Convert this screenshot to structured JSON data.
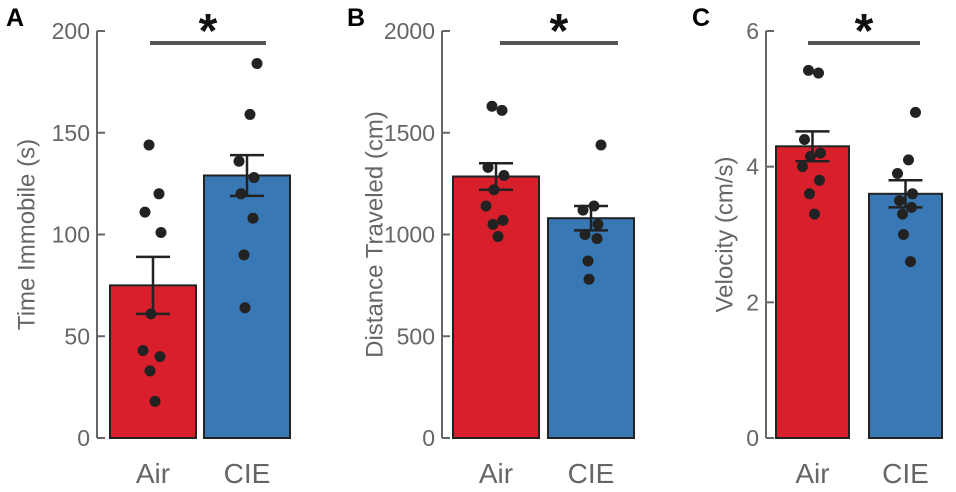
{
  "colors": {
    "air": "#DA1F2C",
    "cie": "#3878B4",
    "axis": "#666666",
    "dot": "#222222",
    "sig": "#555555"
  },
  "chart_data": [
    {
      "panel_label": "A",
      "type": "bar",
      "ylabel": "Time Immobile (s)",
      "ylim": [
        0,
        200
      ],
      "yticks": [
        0,
        50,
        100,
        150,
        200
      ],
      "categories": [
        "Air",
        "CIE"
      ],
      "values": [
        75,
        129
      ],
      "sem": [
        14,
        10
      ],
      "points": [
        [
          144,
          120,
          111,
          101,
          61,
          43,
          40,
          33,
          18
        ],
        [
          184,
          159,
          136,
          128,
          120,
          108,
          90,
          64
        ]
      ],
      "significance": "*"
    },
    {
      "panel_label": "B",
      "type": "bar",
      "ylabel": "Distance Traveled (cm)",
      "ylim": [
        0,
        2000
      ],
      "yticks": [
        0,
        500,
        1000,
        1500,
        2000
      ],
      "categories": [
        "Air",
        "CIE"
      ],
      "values": [
        1285,
        1080
      ],
      "sem": [
        65,
        60
      ],
      "points": [
        [
          1630,
          1610,
          1330,
          1290,
          1220,
          1140,
          1070,
          1050,
          990
        ],
        [
          1440,
          1140,
          1120,
          1050,
          1000,
          980,
          870,
          780
        ]
      ],
      "significance": "*"
    },
    {
      "panel_label": "C",
      "type": "bar",
      "ylabel": "Velocity (cm/s)",
      "ylim": [
        0,
        6
      ],
      "yticks": [
        0,
        2,
        4,
        6
      ],
      "categories": [
        "Air",
        "CIE"
      ],
      "values": [
        4.3,
        3.6
      ],
      "sem": [
        0.22,
        0.2
      ],
      "points": [
        [
          5.42,
          5.38,
          4.4,
          4.2,
          4.15,
          4.0,
          3.8,
          3.6,
          3.3
        ],
        [
          4.8,
          4.1,
          3.9,
          3.6,
          3.5,
          3.4,
          3.3,
          3.0,
          2.6
        ]
      ],
      "significance": "*"
    }
  ]
}
